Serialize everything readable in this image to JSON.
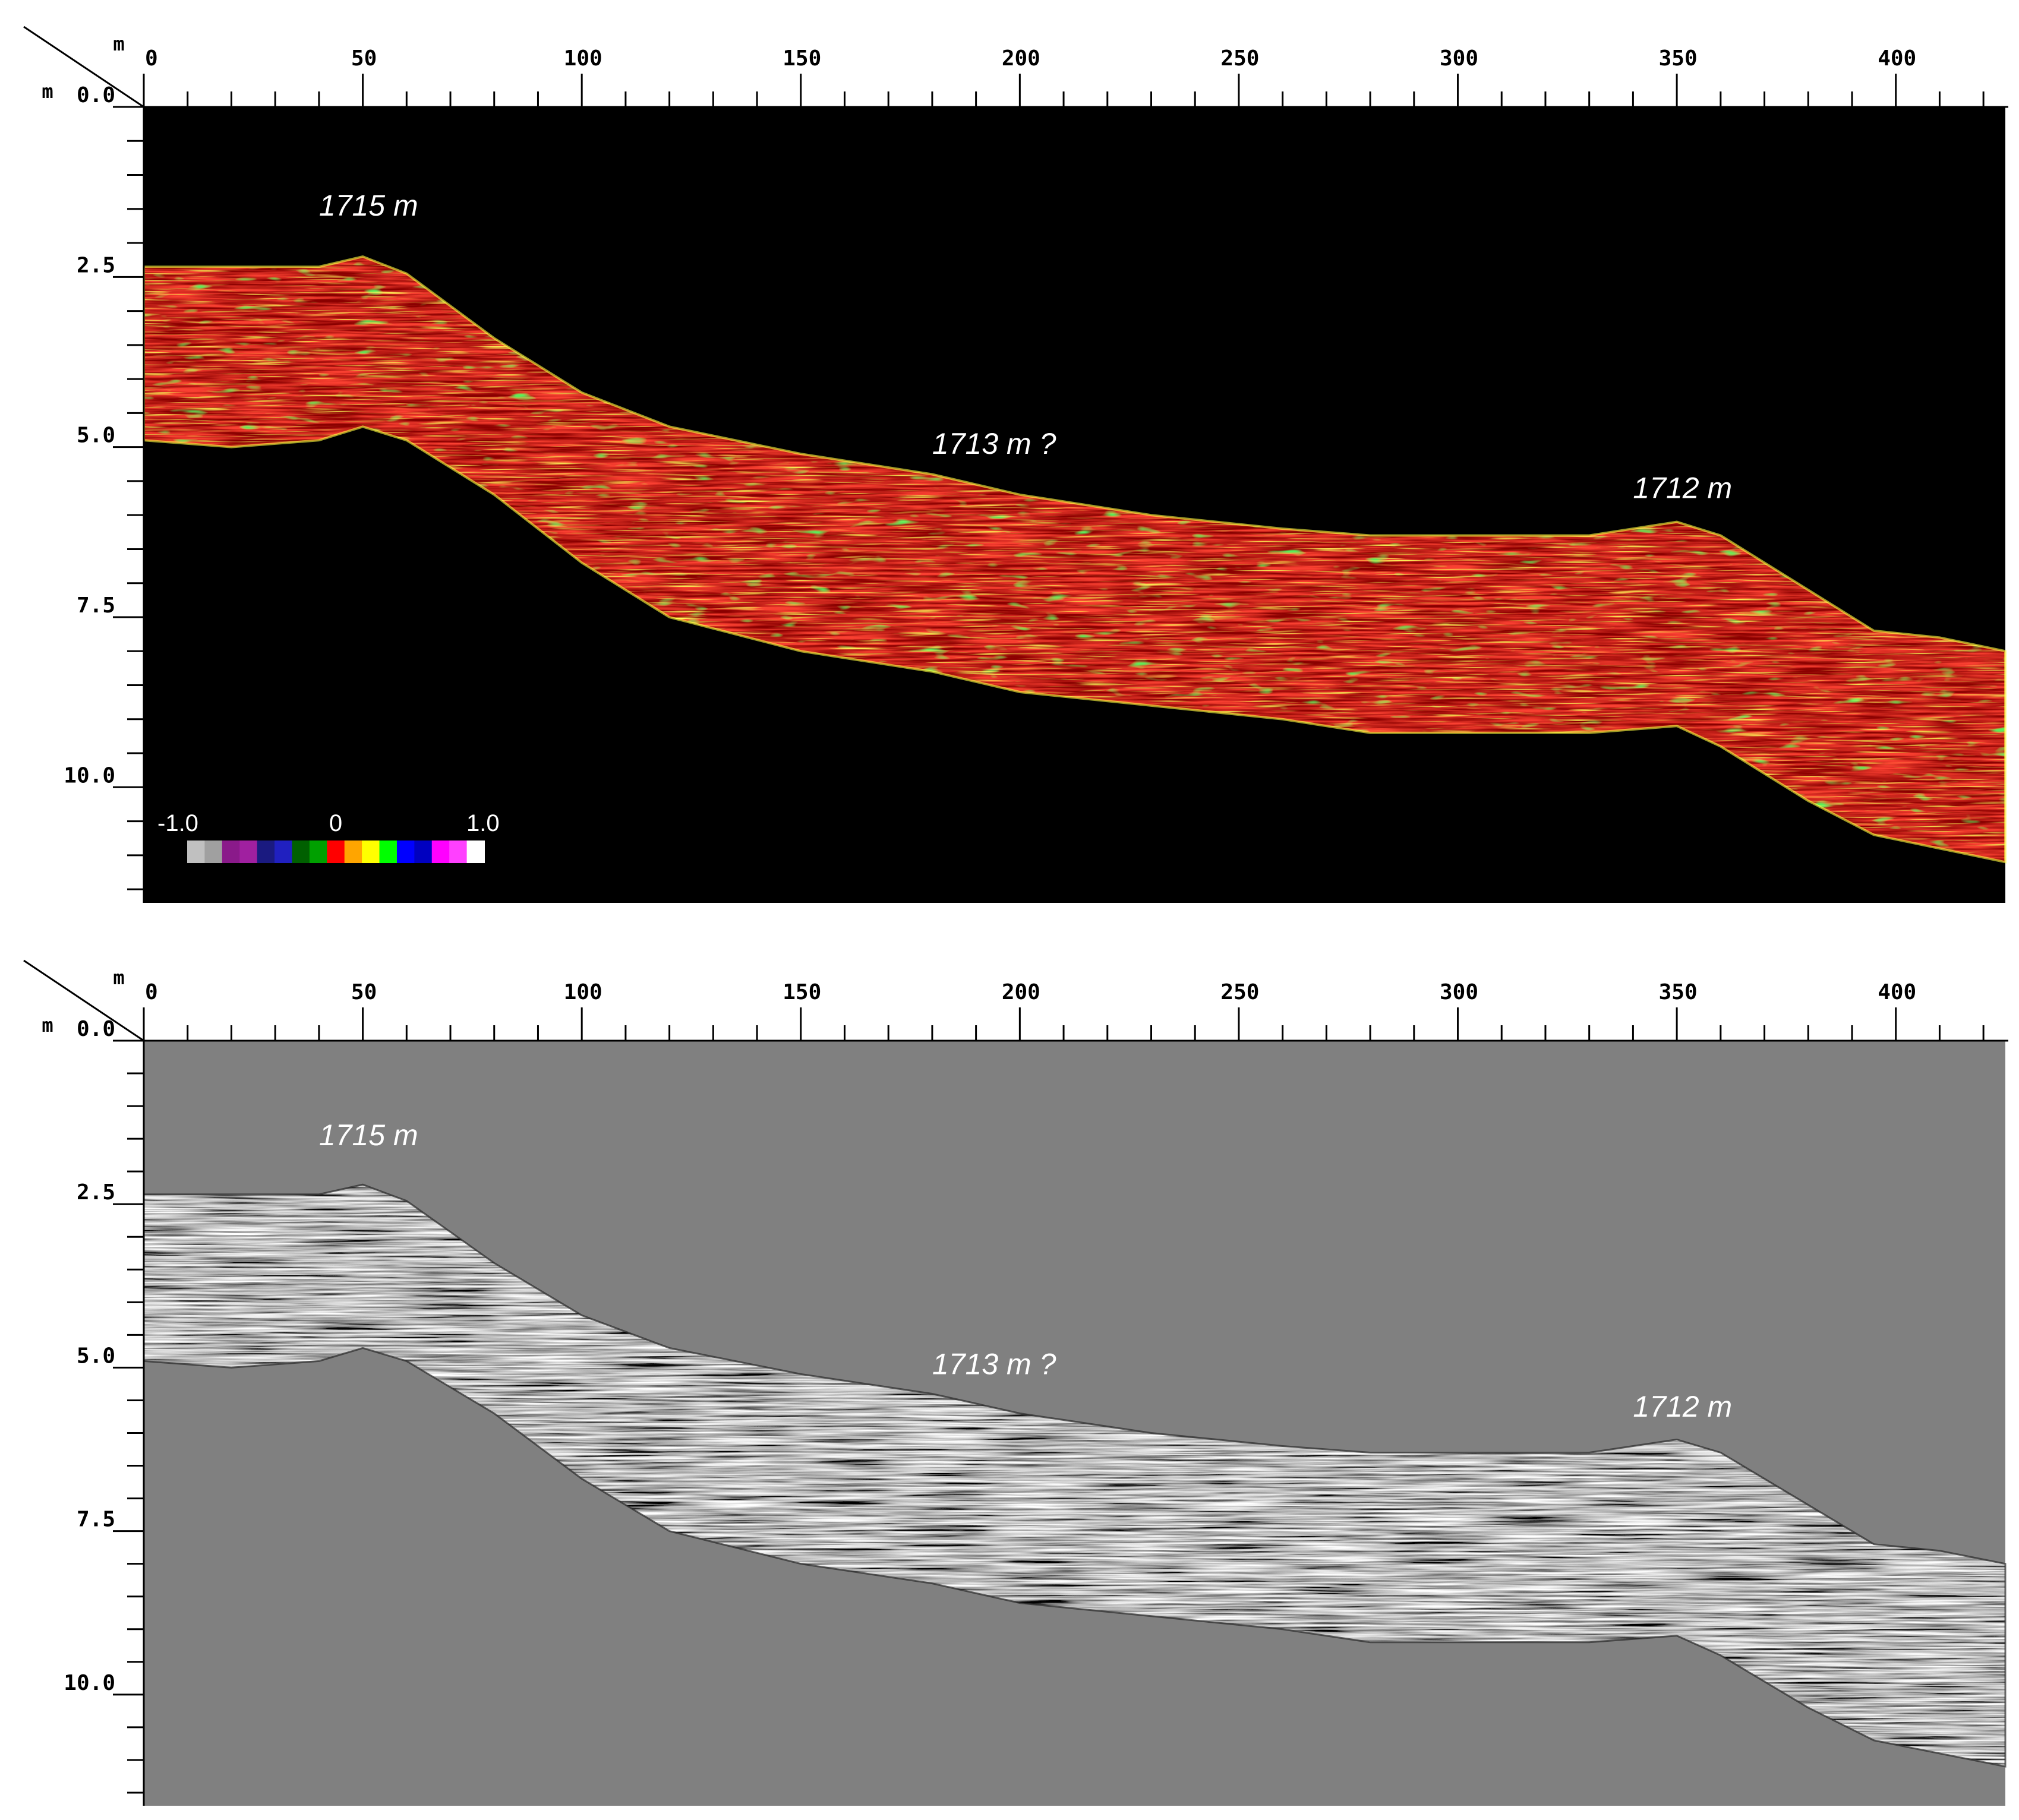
{
  "panels": [
    {
      "id": "color",
      "background": "#000000",
      "style": "color",
      "x_unit": "m",
      "y_unit": "m",
      "x_ticks": [
        "0",
        "50",
        "100",
        "150",
        "200",
        "250",
        "300",
        "350",
        "400"
      ],
      "y_ticks": [
        "0.0",
        "2.5",
        "5.0",
        "7.5",
        "10.0"
      ],
      "annotations": [
        "1715 m",
        "1713 m ?",
        "1712 m"
      ],
      "color_scale": {
        "min_label": "-1.0",
        "mid_label": "0",
        "max_label": "1.0",
        "colors": [
          "#c0c0c0",
          "#a0a0a0",
          "#8a1a8a",
          "#a020a0",
          "#1a1a80",
          "#2020c0",
          "#006000",
          "#00a000",
          "#ff0000",
          "#ffa500",
          "#ffff00",
          "#00ff00",
          "#0000ff",
          "#0000c0",
          "#ff00ff",
          "#ff40ff",
          "#ffffff"
        ]
      }
    },
    {
      "id": "gray",
      "background": "#808080",
      "style": "gray",
      "x_unit": "m",
      "y_unit": "m",
      "x_ticks": [
        "0",
        "50",
        "100",
        "150",
        "200",
        "250",
        "300",
        "350",
        "400"
      ],
      "y_ticks": [
        "0.0",
        "2.5",
        "5.0",
        "7.5",
        "10.0"
      ],
      "annotations": [
        "1715 m",
        "1713 m ?",
        "1712 m"
      ]
    }
  ],
  "profile": {
    "distance_m": [
      0,
      20,
      40,
      50,
      60,
      80,
      100,
      120,
      150,
      180,
      200,
      230,
      260,
      280,
      310,
      330,
      350,
      360,
      380,
      395,
      410,
      425
    ],
    "top_depth_m": [
      2.35,
      2.35,
      2.35,
      2.2,
      2.45,
      3.4,
      4.2,
      4.7,
      5.1,
      5.4,
      5.7,
      6.0,
      6.2,
      6.3,
      6.3,
      6.3,
      6.1,
      6.3,
      7.1,
      7.7,
      7.8,
      8.0
    ],
    "bottom_depth_m": [
      4.9,
      5.0,
      4.9,
      4.7,
      4.9,
      5.7,
      6.7,
      7.5,
      8.0,
      8.3,
      8.6,
      8.8,
      9.0,
      9.2,
      9.2,
      9.2,
      9.1,
      9.4,
      10.2,
      10.7,
      10.9,
      11.1
    ]
  }
}
